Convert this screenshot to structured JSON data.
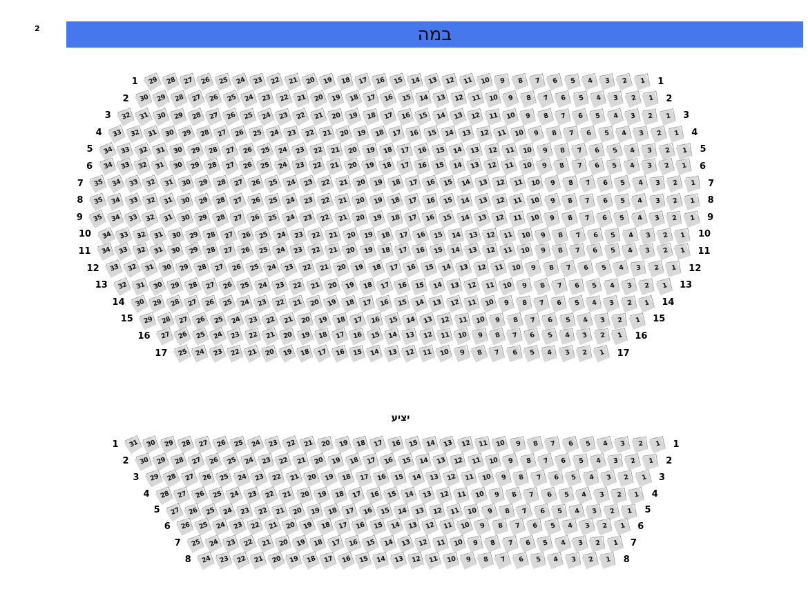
{
  "page_corner_label": "2",
  "header": {
    "title": "במה",
    "background_color": "#4677ec"
  },
  "sections": [
    {
      "id": "main",
      "rows": [
        {
          "row": "1",
          "seats": [
            29,
            28,
            27,
            26,
            25,
            24,
            23,
            22,
            21,
            20,
            19,
            18,
            17,
            16,
            15,
            14,
            13,
            12,
            11,
            10,
            9,
            8,
            7,
            6,
            5,
            4,
            3,
            2,
            1
          ]
        },
        {
          "row": "2",
          "seats": [
            30,
            29,
            28,
            27,
            26,
            25,
            24,
            23,
            22,
            21,
            20,
            19,
            18,
            17,
            16,
            15,
            14,
            13,
            12,
            11,
            10,
            9,
            8,
            7,
            6,
            5,
            4,
            3,
            2,
            1
          ]
        },
        {
          "row": "3",
          "seats": [
            32,
            31,
            30,
            29,
            28,
            27,
            26,
            25,
            24,
            23,
            22,
            21,
            20,
            19,
            18,
            17,
            16,
            15,
            14,
            13,
            12,
            11,
            10,
            9,
            8,
            7,
            6,
            5,
            4,
            3,
            2,
            1
          ]
        },
        {
          "row": "4",
          "seats": [
            33,
            32,
            31,
            30,
            29,
            28,
            27,
            26,
            25,
            24,
            23,
            22,
            21,
            20,
            19,
            18,
            17,
            16,
            15,
            14,
            13,
            12,
            11,
            10,
            9,
            8,
            7,
            6,
            5,
            4,
            3,
            2,
            1
          ]
        },
        {
          "row": "5",
          "seats": [
            34,
            33,
            32,
            31,
            30,
            29,
            28,
            27,
            26,
            25,
            24,
            23,
            22,
            21,
            20,
            19,
            18,
            17,
            16,
            15,
            14,
            13,
            12,
            11,
            10,
            9,
            8,
            7,
            6,
            5,
            4,
            3,
            2,
            1
          ]
        },
        {
          "row": "6",
          "seats": [
            34,
            33,
            32,
            31,
            30,
            29,
            28,
            27,
            26,
            25,
            24,
            23,
            22,
            21,
            20,
            19,
            18,
            17,
            16,
            15,
            14,
            13,
            12,
            11,
            10,
            9,
            8,
            7,
            6,
            5,
            4,
            3,
            2,
            1
          ]
        },
        {
          "row": "7",
          "seats": [
            35,
            34,
            33,
            32,
            31,
            30,
            29,
            28,
            27,
            26,
            25,
            24,
            23,
            22,
            21,
            20,
            19,
            18,
            17,
            16,
            15,
            14,
            13,
            12,
            11,
            10,
            9,
            8,
            7,
            6,
            5,
            4,
            3,
            2,
            1
          ]
        },
        {
          "row": "8",
          "seats": [
            35,
            34,
            33,
            32,
            31,
            30,
            29,
            28,
            27,
            26,
            25,
            24,
            23,
            22,
            21,
            20,
            19,
            18,
            17,
            16,
            15,
            14,
            13,
            12,
            11,
            10,
            9,
            8,
            7,
            6,
            5,
            4,
            3,
            2,
            1
          ]
        },
        {
          "row": "9",
          "seats": [
            35,
            34,
            33,
            32,
            31,
            30,
            29,
            28,
            27,
            26,
            25,
            24,
            23,
            22,
            21,
            20,
            19,
            18,
            17,
            16,
            15,
            14,
            13,
            12,
            11,
            10,
            9,
            8,
            7,
            6,
            5,
            4,
            3,
            2,
            1
          ]
        },
        {
          "row": "10",
          "seats": [
            34,
            33,
            32,
            31,
            30,
            29,
            28,
            27,
            26,
            25,
            24,
            23,
            22,
            21,
            20,
            19,
            18,
            17,
            16,
            15,
            14,
            13,
            12,
            11,
            10,
            9,
            8,
            7,
            6,
            5,
            4,
            3,
            2,
            1
          ]
        },
        {
          "row": "11",
          "seats": [
            34,
            33,
            32,
            31,
            30,
            29,
            28,
            27,
            26,
            25,
            24,
            23,
            22,
            21,
            20,
            19,
            18,
            17,
            16,
            15,
            14,
            13,
            12,
            11,
            10,
            9,
            8,
            7,
            6,
            5,
            4,
            3,
            2,
            1
          ]
        },
        {
          "row": "12",
          "seats": [
            33,
            32,
            31,
            30,
            29,
            28,
            27,
            26,
            25,
            24,
            23,
            22,
            21,
            20,
            19,
            18,
            17,
            16,
            15,
            14,
            13,
            12,
            11,
            10,
            9,
            8,
            7,
            6,
            5,
            4,
            3,
            2,
            1
          ]
        },
        {
          "row": "13",
          "seats": [
            32,
            31,
            30,
            29,
            28,
            27,
            26,
            25,
            24,
            23,
            22,
            21,
            20,
            19,
            18,
            17,
            16,
            15,
            14,
            13,
            12,
            11,
            10,
            9,
            8,
            7,
            6,
            5,
            4,
            3,
            2,
            1
          ]
        },
        {
          "row": "14",
          "seats": [
            30,
            29,
            28,
            27,
            26,
            25,
            24,
            23,
            22,
            21,
            20,
            19,
            18,
            17,
            16,
            15,
            14,
            13,
            12,
            11,
            10,
            9,
            8,
            7,
            6,
            5,
            4,
            3,
            2,
            1
          ]
        },
        {
          "row": "15",
          "seats": [
            29,
            28,
            27,
            26,
            25,
            24,
            23,
            22,
            21,
            20,
            19,
            18,
            17,
            16,
            15,
            14,
            13,
            12,
            11,
            10,
            9,
            8,
            7,
            6,
            5,
            4,
            3,
            2,
            1
          ]
        },
        {
          "row": "16",
          "seats": [
            27,
            26,
            25,
            24,
            23,
            22,
            21,
            20,
            19,
            18,
            17,
            16,
            15,
            14,
            13,
            12,
            11,
            10,
            9,
            8,
            7,
            6,
            5,
            4,
            3,
            2,
            1
          ]
        },
        {
          "row": "17",
          "seats": [
            25,
            24,
            23,
            22,
            21,
            20,
            19,
            18,
            17,
            16,
            15,
            14,
            13,
            12,
            11,
            10,
            9,
            8,
            7,
            6,
            5,
            4,
            3,
            2,
            1
          ]
        }
      ]
    },
    {
      "id": "balcony",
      "label": "יציע",
      "rows": [
        {
          "row": "1",
          "seats": [
            31,
            30,
            29,
            28,
            27,
            26,
            25,
            24,
            23,
            22,
            21,
            20,
            19,
            18,
            17,
            16,
            15,
            14,
            13,
            12,
            11,
            10,
            9,
            8,
            7,
            6,
            5,
            4,
            3,
            2,
            1
          ]
        },
        {
          "row": "2",
          "seats": [
            30,
            29,
            28,
            27,
            26,
            25,
            24,
            23,
            22,
            21,
            20,
            19,
            18,
            17,
            16,
            15,
            14,
            13,
            12,
            11,
            10,
            9,
            8,
            7,
            6,
            5,
            4,
            3,
            2,
            1
          ]
        },
        {
          "row": "3",
          "seats": [
            29,
            28,
            27,
            26,
            25,
            24,
            23,
            22,
            21,
            20,
            19,
            18,
            17,
            16,
            15,
            14,
            13,
            12,
            11,
            10,
            9,
            8,
            7,
            6,
            5,
            4,
            3,
            2,
            1
          ]
        },
        {
          "row": "4",
          "seats": [
            28,
            27,
            26,
            25,
            24,
            23,
            22,
            21,
            20,
            19,
            18,
            17,
            16,
            15,
            14,
            13,
            12,
            11,
            10,
            9,
            8,
            7,
            6,
            5,
            4,
            3,
            2,
            1
          ]
        },
        {
          "row": "5",
          "seats": [
            27,
            26,
            25,
            24,
            23,
            22,
            21,
            20,
            19,
            18,
            17,
            16,
            15,
            14,
            13,
            12,
            11,
            10,
            9,
            8,
            7,
            6,
            5,
            4,
            3,
            2,
            1
          ]
        },
        {
          "row": "6",
          "seats": [
            26,
            25,
            24,
            23,
            22,
            21,
            20,
            19,
            18,
            17,
            16,
            15,
            14,
            13,
            12,
            11,
            10,
            9,
            8,
            7,
            6,
            5,
            4,
            3,
            2,
            1
          ]
        },
        {
          "row": "7",
          "seats": [
            25,
            24,
            23,
            22,
            21,
            20,
            19,
            18,
            17,
            16,
            15,
            14,
            13,
            12,
            11,
            10,
            9,
            8,
            7,
            6,
            5,
            4,
            3,
            2,
            1
          ]
        },
        {
          "row": "8",
          "seats": [
            24,
            23,
            22,
            21,
            20,
            19,
            18,
            17,
            16,
            15,
            14,
            13,
            12,
            11,
            10,
            9,
            8,
            7,
            6,
            5,
            4,
            3,
            2,
            1
          ]
        }
      ]
    }
  ]
}
